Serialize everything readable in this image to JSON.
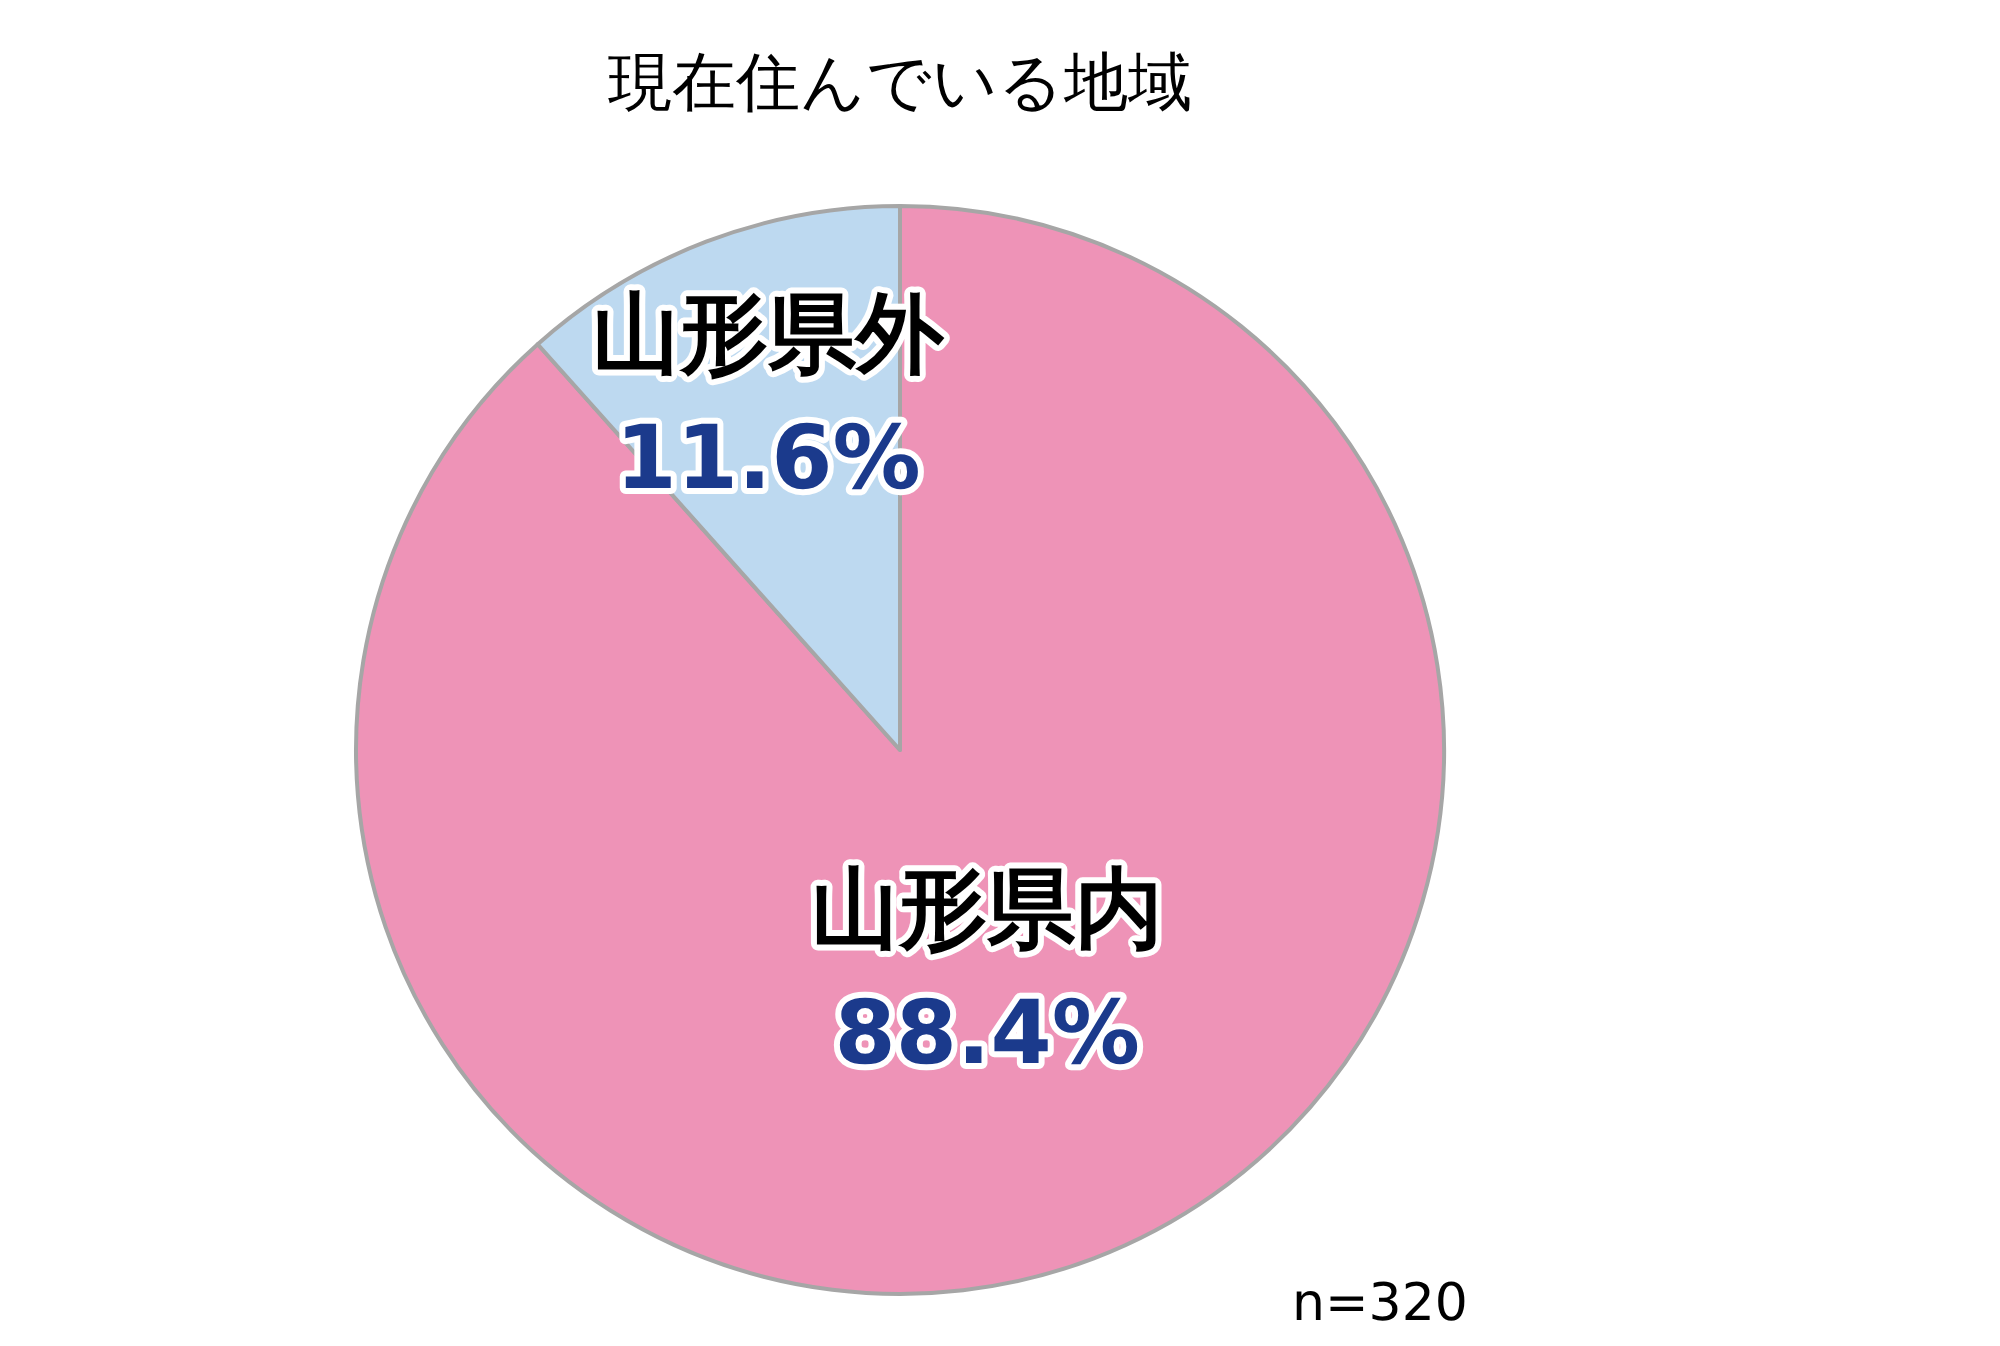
{
  "chart_data": {
    "type": "pie",
    "title": "現在住んでいる地域",
    "categories": [
      "山形県内",
      "山形県外"
    ],
    "values": [
      88.4,
      11.6
    ],
    "colors": [
      "#ee93b7",
      "#bdd9f0"
    ],
    "value_labels": [
      "88.4%",
      "11.6%"
    ],
    "annotations": [
      "n=320"
    ]
  }
}
